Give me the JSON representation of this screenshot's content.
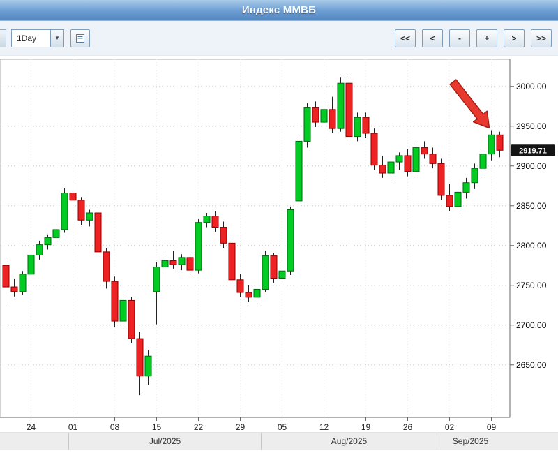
{
  "header": {
    "title": "Индекс ММВБ"
  },
  "toolbar": {
    "period_value": "1Day",
    "dropdown_glyph": "▼",
    "nav_buttons": [
      {
        "label": "<<"
      },
      {
        "label": "<"
      },
      {
        "label": "-"
      },
      {
        "label": "+"
      },
      {
        "label": ">"
      },
      {
        "label": ">>"
      }
    ]
  },
  "chart_data": {
    "type": "candlestick",
    "title": "Индекс ММВБ",
    "timeframe": "1Day",
    "grid": true,
    "legend": "none",
    "price_axis": {
      "side": "right",
      "min": 2584,
      "max": 3034,
      "tick_step": 50,
      "ticks": [
        {
          "value": 2650,
          "label": "2650.00"
        },
        {
          "value": 2700,
          "label": "2700.00"
        },
        {
          "value": 2750,
          "label": "2750.00"
        },
        {
          "value": 2800,
          "label": "2800.00"
        },
        {
          "value": 2850,
          "label": "2850.00"
        },
        {
          "value": 2900,
          "label": "2900.00"
        },
        {
          "value": 2950,
          "label": "2950.00"
        },
        {
          "value": 3000,
          "label": "3000.00"
        }
      ]
    },
    "time_axis": {
      "day_ticks": [
        {
          "index": 3,
          "label": "24"
        },
        {
          "index": 8,
          "label": "01"
        },
        {
          "index": 13,
          "label": "08"
        },
        {
          "index": 18,
          "label": "15"
        },
        {
          "index": 23,
          "label": "22"
        },
        {
          "index": 28,
          "label": "29"
        },
        {
          "index": 33,
          "label": "05"
        },
        {
          "index": 38,
          "label": "12"
        },
        {
          "index": 43,
          "label": "19"
        },
        {
          "index": 48,
          "label": "26"
        },
        {
          "index": 53,
          "label": "02"
        },
        {
          "index": 58,
          "label": "09"
        }
      ],
      "month_labels": [
        {
          "label": "Jul/2025",
          "start_index": 8,
          "end_index": 30
        },
        {
          "label": "Aug/2025",
          "start_index": 31,
          "end_index": 51
        },
        {
          "label": "Sep/2025",
          "start_index": 52,
          "end_index": 59
        }
      ]
    },
    "last_price": {
      "value": 2919.71,
      "label": "2919.71"
    },
    "annotation": {
      "type": "arrow",
      "target_index": 58
    },
    "colors": {
      "up_fill": "#00CC22",
      "up_border": "#006611",
      "down_fill": "#EE2222",
      "down_border": "#8B0000",
      "wick": "#222222",
      "grid": "#c9c9c9",
      "axis": "#666666",
      "price_tag_bg": "#141414",
      "price_tag_text": "#ffffff",
      "arrow": "#e8392e",
      "arrow_border": "#a51f16"
    },
    "candles_format": [
      "date",
      "open",
      "high",
      "low",
      "close"
    ],
    "candles": [
      [
        "2025-06-19",
        2775,
        2782,
        2726,
        2748
      ],
      [
        "2025-06-20",
        2748,
        2758,
        2736,
        2742
      ],
      [
        "2025-06-23",
        2742,
        2768,
        2738,
        2764
      ],
      [
        "2025-06-24",
        2764,
        2792,
        2760,
        2788
      ],
      [
        "2025-06-25",
        2788,
        2806,
        2782,
        2801
      ],
      [
        "2025-06-26",
        2801,
        2814,
        2795,
        2810
      ],
      [
        "2025-06-27",
        2810,
        2824,
        2804,
        2820
      ],
      [
        "2025-06-30",
        2820,
        2872,
        2816,
        2866
      ],
      [
        "2025-07-01",
        2866,
        2878,
        2850,
        2857
      ],
      [
        "2025-07-02",
        2857,
        2861,
        2826,
        2832
      ],
      [
        "2025-07-03",
        2832,
        2845,
        2824,
        2841
      ],
      [
        "2025-07-04",
        2841,
        2846,
        2786,
        2792
      ],
      [
        "2025-07-07",
        2792,
        2797,
        2746,
        2755
      ],
      [
        "2025-07-08",
        2755,
        2761,
        2698,
        2705
      ],
      [
        "2025-07-09",
        2705,
        2739,
        2697,
        2731
      ],
      [
        "2025-07-10",
        2731,
        2735,
        2677,
        2683
      ],
      [
        "2025-07-11",
        2683,
        2691,
        2612,
        2636
      ],
      [
        "2025-07-14",
        2636,
        2669,
        2625,
        2661
      ],
      [
        "2025-07-15",
        2742,
        2779,
        2701,
        2773
      ],
      [
        "2025-07-16",
        2773,
        2787,
        2766,
        2781
      ],
      [
        "2025-07-17",
        2781,
        2793,
        2771,
        2776
      ],
      [
        "2025-07-18",
        2776,
        2789,
        2769,
        2785
      ],
      [
        "2025-07-21",
        2785,
        2791,
        2763,
        2769
      ],
      [
        "2025-07-22",
        2769,
        2833,
        2765,
        2829
      ],
      [
        "2025-07-23",
        2829,
        2841,
        2823,
        2837
      ],
      [
        "2025-07-24",
        2837,
        2843,
        2817,
        2823
      ],
      [
        "2025-07-25",
        2823,
        2830,
        2797,
        2803
      ],
      [
        "2025-07-28",
        2803,
        2808,
        2751,
        2757
      ],
      [
        "2025-07-29",
        2757,
        2764,
        2735,
        2741
      ],
      [
        "2025-07-30",
        2741,
        2750,
        2729,
        2735
      ],
      [
        "2025-07-31",
        2735,
        2749,
        2727,
        2745
      ],
      [
        "2025-08-01",
        2745,
        2793,
        2741,
        2787
      ],
      [
        "2025-08-04",
        2787,
        2791,
        2753,
        2759
      ],
      [
        "2025-08-05",
        2759,
        2773,
        2751,
        2768
      ],
      [
        "2025-08-06",
        2768,
        2849,
        2763,
        2845
      ],
      [
        "2025-08-07",
        2856,
        2937,
        2851,
        2931
      ],
      [
        "2025-08-08",
        2931,
        2979,
        2923,
        2973
      ],
      [
        "2025-08-11",
        2973,
        2981,
        2949,
        2955
      ],
      [
        "2025-08-12",
        2955,
        2977,
        2947,
        2971
      ],
      [
        "2025-08-13",
        2971,
        2987,
        2941,
        2947
      ],
      [
        "2025-08-14",
        2947,
        3011,
        2943,
        3004
      ],
      [
        "2025-08-15",
        3004,
        3013,
        2929,
        2937
      ],
      [
        "2025-08-18",
        2937,
        2967,
        2931,
        2961
      ],
      [
        "2025-08-19",
        2961,
        2967,
        2935,
        2941
      ],
      [
        "2025-08-20",
        2941,
        2947,
        2895,
        2901
      ],
      [
        "2025-08-21",
        2901,
        2913,
        2885,
        2891
      ],
      [
        "2025-08-22",
        2891,
        2909,
        2883,
        2905
      ],
      [
        "2025-08-25",
        2905,
        2917,
        2895,
        2913
      ],
      [
        "2025-08-26",
        2913,
        2921,
        2887,
        2893
      ],
      [
        "2025-08-27",
        2893,
        2927,
        2889,
        2923
      ],
      [
        "2025-08-28",
        2923,
        2931,
        2909,
        2915
      ],
      [
        "2025-08-29",
        2915,
        2923,
        2897,
        2903
      ],
      [
        "2025-09-01",
        2903,
        2909,
        2857,
        2863
      ],
      [
        "2025-09-02",
        2863,
        2877,
        2843,
        2849
      ],
      [
        "2025-09-03",
        2849,
        2873,
        2841,
        2867
      ],
      [
        "2025-09-04",
        2867,
        2885,
        2859,
        2879
      ],
      [
        "2025-09-05",
        2879,
        2903,
        2871,
        2897
      ],
      [
        "2025-09-08",
        2897,
        2921,
        2889,
        2915
      ],
      [
        "2025-09-09",
        2915,
        2945,
        2907,
        2939
      ],
      [
        "2025-09-10",
        2939,
        2943,
        2911,
        2919.71
      ]
    ]
  }
}
